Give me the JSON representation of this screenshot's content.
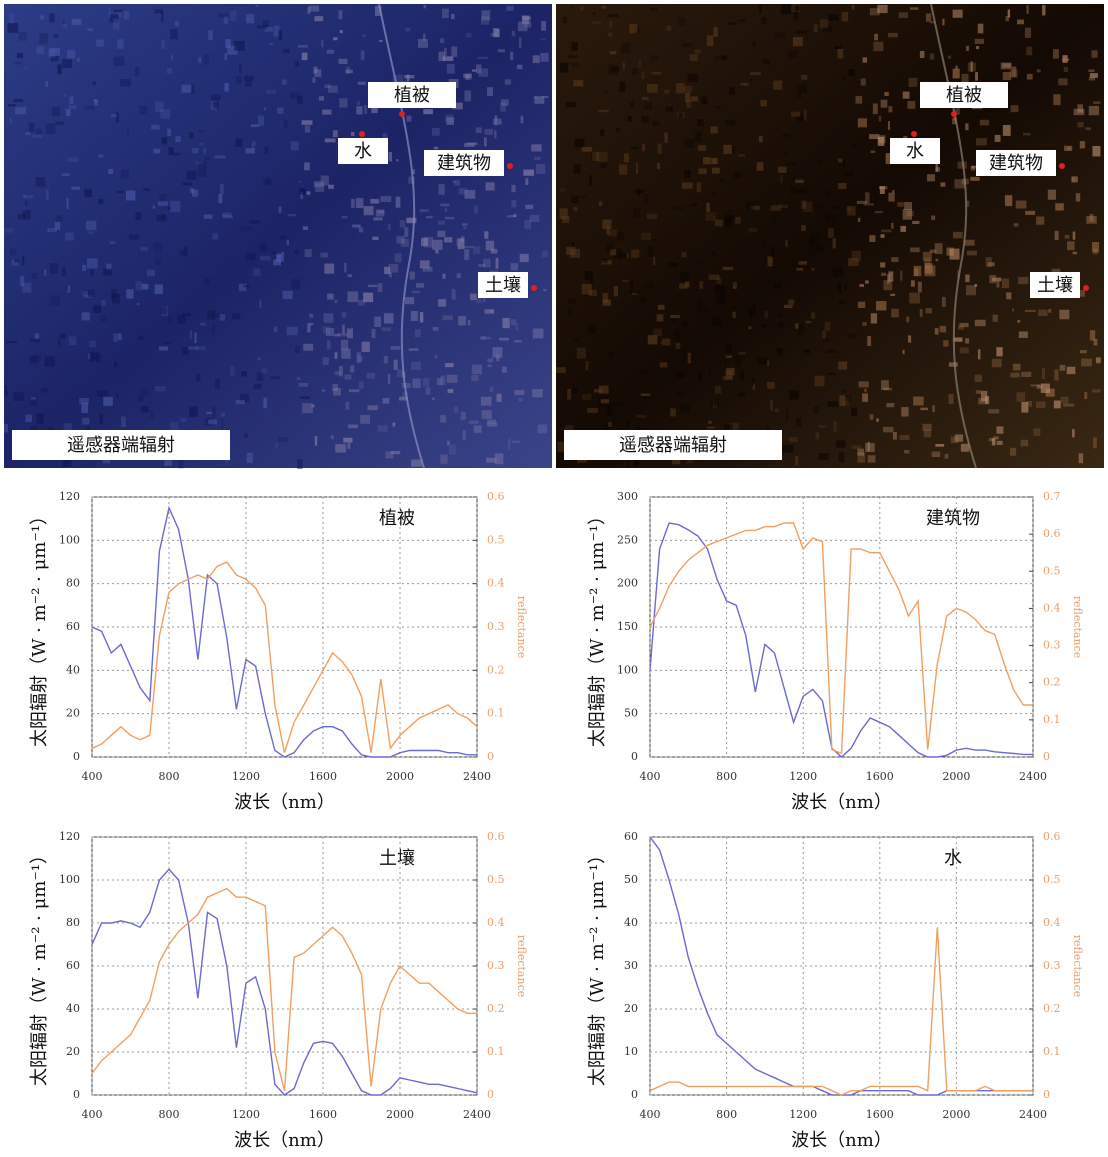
{
  "images": [
    {
      "caption": "遥感器端辐射",
      "labels": [
        "植被",
        "水",
        "建筑物",
        "土壤"
      ]
    },
    {
      "caption": "遥感器端辐射",
      "labels": [
        "植被",
        "水",
        "建筑物",
        "土壤"
      ]
    }
  ],
  "chart_data": [
    {
      "type": "line",
      "title": "植被",
      "xlabel": "波长（nm）",
      "ylabel": "太阳辐射（W · m⁻² · μm⁻¹）",
      "y2label": "reflectance",
      "x": [
        400,
        450,
        500,
        550,
        600,
        650,
        700,
        750,
        800,
        850,
        900,
        950,
        1000,
        1050,
        1100,
        1150,
        1200,
        1250,
        1300,
        1350,
        1400,
        1450,
        1500,
        1550,
        1600,
        1650,
        1700,
        1750,
        1800,
        1850,
        1900,
        1950,
        2000,
        2050,
        2100,
        2150,
        2200,
        2250,
        2300,
        2350,
        2400
      ],
      "xlim": [
        400,
        2400
      ],
      "xticks": [
        400,
        800,
        1200,
        1600,
        2000,
        2400
      ],
      "ylim": [
        0,
        120
      ],
      "yticks": [
        0,
        20,
        40,
        60,
        80,
        100,
        120
      ],
      "y2lim": [
        0,
        0.6
      ],
      "y2ticks": [
        0,
        0.1,
        0.2,
        0.3,
        0.4,
        0.5,
        0.6
      ],
      "grid": true,
      "series": [
        {
          "color": "#6a6ad0",
          "values": [
            60,
            58,
            48,
            52,
            42,
            32,
            26,
            95,
            115,
            105,
            82,
            45,
            84,
            80,
            55,
            22,
            45,
            42,
            20,
            3,
            0,
            2,
            8,
            12,
            14,
            14,
            12,
            6,
            1,
            0,
            0,
            0,
            2,
            3,
            3,
            3,
            3,
            2,
            2,
            1,
            1
          ]
        },
        {
          "color": "#f0a060",
          "axis": "y2",
          "values": [
            0.02,
            0.03,
            0.05,
            0.07,
            0.05,
            0.04,
            0.05,
            0.28,
            0.38,
            0.4,
            0.41,
            0.42,
            0.41,
            0.44,
            0.45,
            0.42,
            0.41,
            0.39,
            0.35,
            0.12,
            0.01,
            0.08,
            0.12,
            0.16,
            0.2,
            0.24,
            0.22,
            0.19,
            0.14,
            0.01,
            0.18,
            0.02,
            0.05,
            0.07,
            0.09,
            0.1,
            0.11,
            0.12,
            0.1,
            0.09,
            0.07
          ]
        }
      ]
    },
    {
      "type": "line",
      "title": "建筑物",
      "xlabel": "波长（nm）",
      "ylabel": "太阳辐射（W · m⁻² · μm⁻¹）",
      "y2label": "reflectance",
      "x": [
        400,
        450,
        500,
        550,
        600,
        650,
        700,
        750,
        800,
        850,
        900,
        950,
        1000,
        1050,
        1100,
        1150,
        1200,
        1250,
        1300,
        1350,
        1400,
        1450,
        1500,
        1550,
        1600,
        1650,
        1700,
        1750,
        1800,
        1850,
        1900,
        1950,
        2000,
        2050,
        2100,
        2150,
        2200,
        2250,
        2300,
        2350,
        2400
      ],
      "xlim": [
        400,
        2400
      ],
      "xticks": [
        400,
        800,
        1200,
        1600,
        2000,
        2400
      ],
      "ylim": [
        0,
        300
      ],
      "yticks": [
        0,
        50,
        100,
        150,
        200,
        250,
        300
      ],
      "y2lim": [
        0,
        0.7
      ],
      "y2ticks": [
        0,
        0.1,
        0.2,
        0.3,
        0.4,
        0.5,
        0.6,
        0.7
      ],
      "grid": true,
      "series": [
        {
          "color": "#6a6ad0",
          "values": [
            100,
            240,
            270,
            268,
            262,
            255,
            240,
            205,
            180,
            175,
            140,
            75,
            130,
            120,
            80,
            40,
            70,
            78,
            65,
            10,
            0,
            10,
            30,
            45,
            40,
            35,
            25,
            15,
            5,
            0,
            0,
            2,
            8,
            10,
            8,
            8,
            6,
            5,
            4,
            3,
            3
          ]
        },
        {
          "color": "#f0a060",
          "axis": "y2",
          "values": [
            0.35,
            0.4,
            0.46,
            0.5,
            0.53,
            0.55,
            0.57,
            0.58,
            0.59,
            0.6,
            0.61,
            0.61,
            0.62,
            0.62,
            0.63,
            0.63,
            0.56,
            0.59,
            0.58,
            0.02,
            0.01,
            0.56,
            0.56,
            0.55,
            0.55,
            0.5,
            0.45,
            0.38,
            0.42,
            0.02,
            0.25,
            0.38,
            0.4,
            0.39,
            0.37,
            0.34,
            0.33,
            0.25,
            0.18,
            0.14,
            0.14
          ]
        }
      ]
    },
    {
      "type": "line",
      "title": "土壤",
      "xlabel": "波长（nm）",
      "ylabel": "太阳辐射（W · m⁻² · μm⁻¹）",
      "y2label": "reflectance",
      "x": [
        400,
        450,
        500,
        550,
        600,
        650,
        700,
        750,
        800,
        850,
        900,
        950,
        1000,
        1050,
        1100,
        1150,
        1200,
        1250,
        1300,
        1350,
        1400,
        1450,
        1500,
        1550,
        1600,
        1650,
        1700,
        1750,
        1800,
        1850,
        1900,
        1950,
        2000,
        2050,
        2100,
        2150,
        2200,
        2250,
        2300,
        2350,
        2400
      ],
      "xlim": [
        400,
        2400
      ],
      "xticks": [
        400,
        800,
        1200,
        1600,
        2000,
        2400
      ],
      "ylim": [
        0,
        120
      ],
      "yticks": [
        0,
        20,
        40,
        60,
        80,
        100,
        120
      ],
      "y2lim": [
        0,
        0.6
      ],
      "y2ticks": [
        0,
        0.1,
        0.2,
        0.3,
        0.4,
        0.5,
        0.6
      ],
      "grid": true,
      "series": [
        {
          "color": "#6a6ad0",
          "values": [
            70,
            80,
            80,
            81,
            80,
            78,
            85,
            100,
            105,
            100,
            80,
            45,
            85,
            82,
            60,
            22,
            52,
            55,
            40,
            5,
            0,
            3,
            15,
            24,
            25,
            24,
            18,
            10,
            2,
            0,
            0,
            3,
            8,
            7,
            6,
            5,
            5,
            4,
            3,
            2,
            1
          ]
        },
        {
          "color": "#f0a060",
          "axis": "y2",
          "values": [
            0.05,
            0.08,
            0.1,
            0.12,
            0.14,
            0.18,
            0.22,
            0.31,
            0.35,
            0.38,
            0.4,
            0.42,
            0.46,
            0.47,
            0.48,
            0.46,
            0.46,
            0.45,
            0.44,
            0.1,
            0.01,
            0.32,
            0.33,
            0.35,
            0.37,
            0.39,
            0.37,
            0.33,
            0.28,
            0.02,
            0.2,
            0.26,
            0.3,
            0.28,
            0.26,
            0.26,
            0.24,
            0.22,
            0.2,
            0.19,
            0.19
          ]
        }
      ]
    },
    {
      "type": "line",
      "title": "水",
      "xlabel": "波长（nm）",
      "ylabel": "太阳辐射（W · m⁻² · μm⁻¹）",
      "y2label": "reflectance",
      "x": [
        400,
        450,
        500,
        550,
        600,
        650,
        700,
        750,
        800,
        850,
        900,
        950,
        1000,
        1050,
        1100,
        1150,
        1200,
        1250,
        1300,
        1350,
        1400,
        1450,
        1500,
        1550,
        1600,
        1650,
        1700,
        1750,
        1800,
        1850,
        1900,
        1950,
        2000,
        2050,
        2100,
        2150,
        2200,
        2250,
        2300,
        2350,
        2400
      ],
      "xlim": [
        400,
        2400
      ],
      "xticks": [
        400,
        800,
        1200,
        1600,
        2000,
        2400
      ],
      "ylim": [
        0,
        60
      ],
      "yticks": [
        0,
        10,
        20,
        30,
        40,
        50,
        60
      ],
      "y2lim": [
        0,
        0.6
      ],
      "y2ticks": [
        0,
        0.1,
        0.2,
        0.3,
        0.4,
        0.5,
        0.6
      ],
      "grid": true,
      "series": [
        {
          "color": "#6a6ad0",
          "values": [
            60,
            57,
            50,
            42,
            32,
            25,
            19,
            14,
            12,
            10,
            8,
            6,
            5,
            4,
            3,
            2,
            2,
            2,
            1,
            0,
            0,
            0,
            1,
            1,
            1,
            1,
            1,
            1,
            0,
            0,
            0,
            1,
            1,
            1,
            1,
            1,
            1,
            1,
            1,
            1,
            1
          ]
        },
        {
          "color": "#f0a060",
          "axis": "y2",
          "values": [
            0.01,
            0.02,
            0.03,
            0.03,
            0.02,
            0.02,
            0.02,
            0.02,
            0.02,
            0.02,
            0.02,
            0.02,
            0.02,
            0.02,
            0.02,
            0.02,
            0.02,
            0.02,
            0.02,
            0.01,
            0,
            0.01,
            0.01,
            0.02,
            0.02,
            0.02,
            0.02,
            0.02,
            0.02,
            0.01,
            0.39,
            0.01,
            0.01,
            0.01,
            0.01,
            0.02,
            0.01,
            0.01,
            0.01,
            0.01,
            0.01
          ]
        }
      ]
    }
  ]
}
